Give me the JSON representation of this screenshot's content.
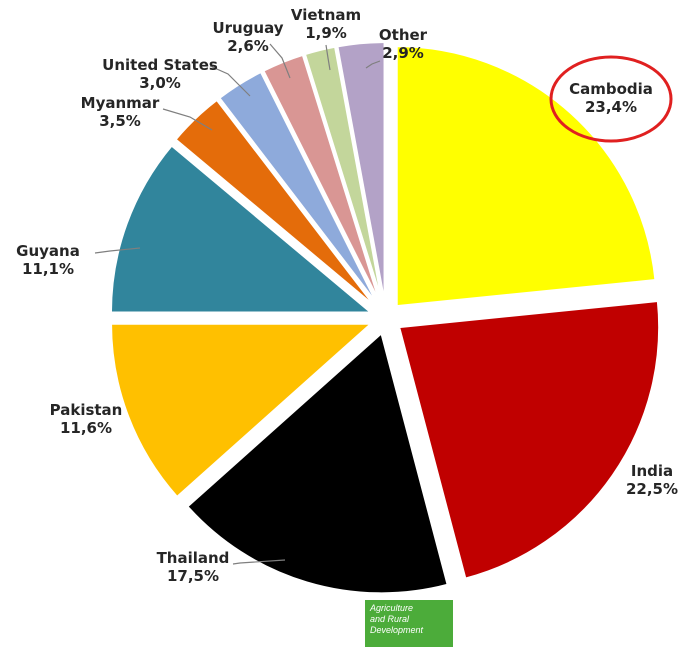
{
  "chart_data": {
    "type": "pie",
    "title": "",
    "series": [
      {
        "name": "Cambodia",
        "label": "Cambodia",
        "pct_label": "23,4%",
        "value": 23.4,
        "color": "#ffff00"
      },
      {
        "name": "India",
        "label": "India",
        "pct_label": "22,5%",
        "value": 22.5,
        "color": "#c00000"
      },
      {
        "name": "Thailand",
        "label": "Thailand",
        "pct_label": "17,5%",
        "value": 17.5,
        "color": "#000000"
      },
      {
        "name": "Pakistan",
        "label": "Pakistan",
        "pct_label": "11,6%",
        "value": 11.6,
        "color": "#ffc000"
      },
      {
        "name": "Guyana",
        "label": "Guyana",
        "pct_label": "11,1%",
        "value": 11.1,
        "color": "#31859c"
      },
      {
        "name": "Myanmar",
        "label": "Myanmar",
        "pct_label": "3,5%",
        "value": 3.5,
        "color": "#e46c0a"
      },
      {
        "name": "United States",
        "label": "United States",
        "pct_label": "3,0%",
        "value": 3.0,
        "color": "#8eaadb"
      },
      {
        "name": "Uruguay",
        "label": "Uruguay",
        "pct_label": "2,6%",
        "value": 2.6,
        "color": "#d99694"
      },
      {
        "name": "Vietnam",
        "label": "Vietnam",
        "pct_label": "1,9%",
        "value": 1.9,
        "color": "#c3d69b"
      },
      {
        "name": "Other",
        "label": "Other",
        "pct_label": "2,9%",
        "value": 2.9,
        "color": "#b3a2c7"
      }
    ],
    "highlight": {
      "slice": "Cambodia",
      "style": "red ellipse around label",
      "color": "#e02020"
    }
  },
  "footer_logo": {
    "lines": [
      "Agriculture",
      "and Rural",
      "Development"
    ],
    "color": "#4cac3a"
  }
}
